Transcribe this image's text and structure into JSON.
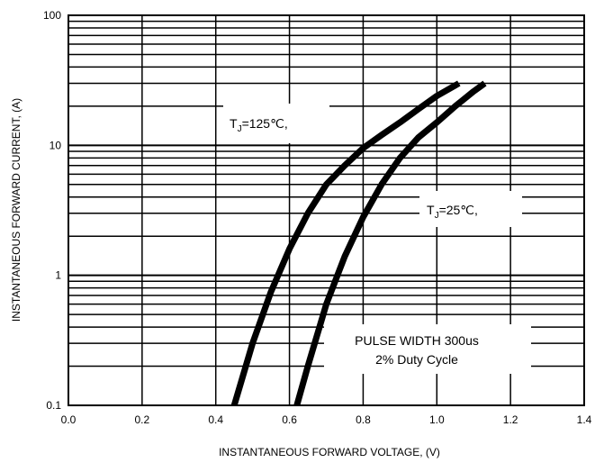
{
  "chart_data": {
    "type": "line",
    "xlabel": "INSTANTANEOUS FORWARD VOLTAGE, (V)",
    "ylabel": "INSTANTANEOUS FORWARD CURRENT, (A)",
    "xlim": [
      0.0,
      1.4
    ],
    "ylim": [
      0.1,
      100
    ],
    "yscale": "log",
    "x_ticks": [
      "0.0",
      "0.2",
      "0.4",
      "0.6",
      "0.8",
      "1.0",
      "1.2",
      "1.4"
    ],
    "y_ticks": [
      "0.1",
      "1",
      "10",
      "100"
    ],
    "grid": true,
    "series": [
      {
        "name": "TJ=125℃,",
        "x": [
          0.45,
          0.5,
          0.55,
          0.6,
          0.65,
          0.7,
          0.75,
          0.8,
          0.85,
          0.9,
          0.95,
          1.0,
          1.06
        ],
        "y": [
          0.1,
          0.3,
          0.75,
          1.6,
          3.0,
          5.0,
          7.0,
          9.5,
          12.0,
          15.0,
          19.0,
          24.0,
          30.0
        ]
      },
      {
        "name": "TJ=25℃,",
        "x": [
          0.62,
          0.65,
          0.7,
          0.75,
          0.8,
          0.85,
          0.9,
          0.95,
          1.0,
          1.05,
          1.1,
          1.13
        ],
        "y": [
          0.1,
          0.2,
          0.6,
          1.4,
          2.8,
          5.0,
          8.0,
          11.5,
          15.0,
          20.0,
          26.0,
          30.0
        ]
      }
    ],
    "annotations": {
      "label_125_main": "T",
      "label_125_sub": "J",
      "label_125_rest": "=125℃,",
      "label_25_main": "T",
      "label_25_sub": "J",
      "label_25_rest": "=25℃,",
      "note_line1": "PULSE WIDTH 300us",
      "note_line2": "2% Duty Cycle"
    },
    "colors": {
      "line": "#000000",
      "grid": "#000000",
      "background": "#ffffff"
    }
  }
}
